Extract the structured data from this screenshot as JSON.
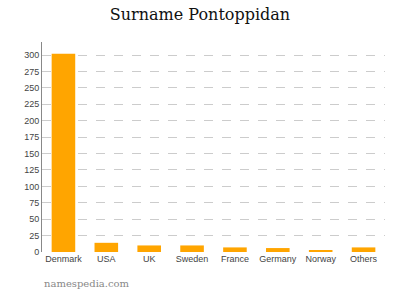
{
  "chart_data": {
    "type": "bar",
    "title": "Surname Pontoppidan",
    "categories": [
      "Denmark",
      "USA",
      "UK",
      "Sweden",
      "France",
      "Germany",
      "Norway",
      "Others"
    ],
    "values": [
      302,
      14,
      10,
      10,
      7,
      6,
      3,
      7
    ],
    "color": "#FFA500",
    "ylim": [
      0,
      320
    ],
    "yticks": [
      0,
      25,
      50,
      75,
      100,
      125,
      150,
      175,
      200,
      225,
      250,
      275,
      300
    ],
    "grid": true,
    "annotations": [
      "namespedia.com"
    ]
  }
}
